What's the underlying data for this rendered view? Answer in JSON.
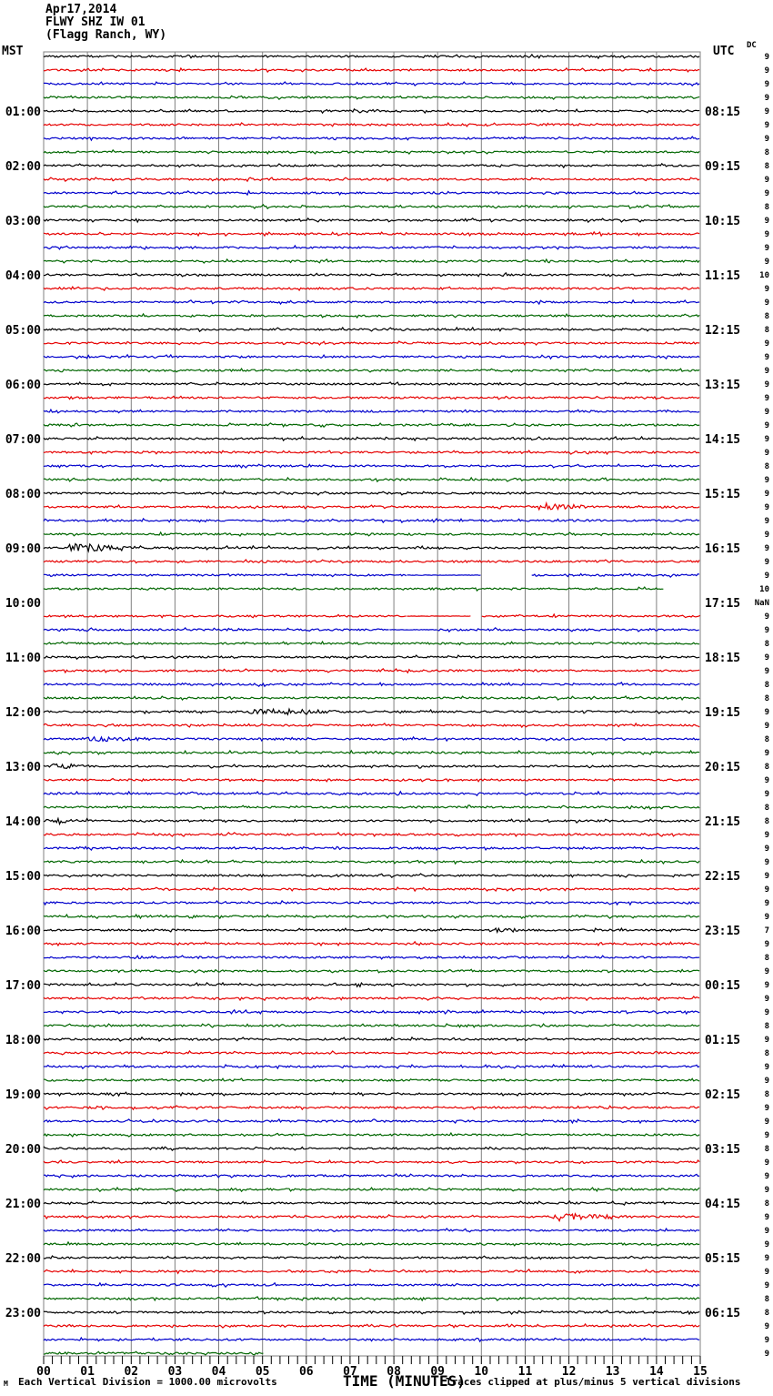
{
  "header": {
    "date": "Apr17,2014",
    "station_line": "FLWY SHZ IW 01",
    "location_line": "(Flagg Ranch, WY)",
    "left_tz": "MST",
    "right_tz": "UTC",
    "dc_label": "DC"
  },
  "x_axis": {
    "title": "TIME (MINUTES)",
    "tick_labels": [
      "00",
      "01",
      "02",
      "03",
      "04",
      "05",
      "06",
      "07",
      "08",
      "09",
      "10",
      "11",
      "12",
      "13",
      "14",
      "15"
    ]
  },
  "footer": {
    "scale_note": "Each Vertical Division = 1000.00 microvolts",
    "clip_note": "Traces clipped at plus/minus 5 vertical divisions",
    "corner_glyph": "M"
  },
  "colors": {
    "grid": "#808080",
    "border": "#808080",
    "trace_cycle": [
      "#000000",
      "#e60000",
      "#0000cc",
      "#006600"
    ]
  },
  "chart_data": {
    "type": "line",
    "subtype": "helicorder-seismogram",
    "title": "FLWY SHZ IW 01 (Flagg Ranch, WY) Apr17,2014",
    "xlabel": "TIME (MINUTES)",
    "x_range": [
      0,
      15
    ],
    "minutes_per_row": 15,
    "rows_per_hour": 4,
    "grid": true,
    "trace_color_cycle": [
      "#000000",
      "#e60000",
      "#0000cc",
      "#006600"
    ],
    "rows": [
      {
        "v": "9"
      },
      {
        "v": "9"
      },
      {
        "v": "9"
      },
      {
        "v": "9"
      },
      {
        "m": "01:00",
        "u": "08:15",
        "v": "9"
      },
      {
        "v": "9"
      },
      {
        "v": "9"
      },
      {
        "v": "8"
      },
      {
        "m": "02:00",
        "u": "09:15",
        "v": "8"
      },
      {
        "v": "9"
      },
      {
        "v": "9"
      },
      {
        "v": "8"
      },
      {
        "m": "03:00",
        "u": "10:15",
        "v": "9"
      },
      {
        "v": "9"
      },
      {
        "v": "9"
      },
      {
        "v": "9"
      },
      {
        "m": "04:00",
        "u": "11:15",
        "v": "10"
      },
      {
        "v": "9"
      },
      {
        "v": "9"
      },
      {
        "v": "8"
      },
      {
        "m": "05:00",
        "u": "12:15",
        "v": "8"
      },
      {
        "v": "9"
      },
      {
        "v": "9"
      },
      {
        "v": "9"
      },
      {
        "m": "06:00",
        "u": "13:15",
        "v": "9"
      },
      {
        "v": "9"
      },
      {
        "v": "9"
      },
      {
        "v": "9"
      },
      {
        "m": "07:00",
        "u": "14:15",
        "v": "9"
      },
      {
        "v": "9"
      },
      {
        "v": "8"
      },
      {
        "v": "9",
        "ev": [
          [
            10.6,
            11.05,
            3
          ]
        ]
      },
      {
        "m": "08:00",
        "u": "15:15",
        "v": "9",
        "ev": [
          [
            5.25,
            5.65,
            2
          ]
        ]
      },
      {
        "v": "9",
        "ev": [
          [
            11.05,
            12.9,
            5
          ]
        ]
      },
      {
        "v": "9"
      },
      {
        "v": "9"
      },
      {
        "m": "09:00",
        "u": "16:15",
        "v": "9",
        "ev": [
          [
            0.4,
            2.4,
            6
          ]
        ]
      },
      {
        "v": "9"
      },
      {
        "v": "9",
        "segs": [
          [
            0,
            8.3,
            "n"
          ],
          [
            8.3,
            10.0,
            "f"
          ],
          [
            11.15,
            15,
            "n"
          ]
        ]
      },
      {
        "v": "10",
        "segs": [
          [
            0,
            14.17,
            "n"
          ]
        ]
      },
      {
        "m": "10:00",
        "u": "17:15",
        "v": "NaN",
        "segs": []
      },
      {
        "v": "9",
        "segs": [
          [
            0,
            8.3,
            "n"
          ],
          [
            8.3,
            9.77,
            "f"
          ],
          [
            10.01,
            15,
            "n"
          ]
        ]
      },
      {
        "v": "9",
        "segs": [
          [
            0,
            7.9,
            "n"
          ],
          [
            7.9,
            9.0,
            "f"
          ],
          [
            9.0,
            15,
            "n"
          ]
        ]
      },
      {
        "v": "8"
      },
      {
        "m": "11:00",
        "u": "18:15",
        "v": "9"
      },
      {
        "v": "9"
      },
      {
        "v": "8"
      },
      {
        "v": "8"
      },
      {
        "m": "12:00",
        "u": "19:15",
        "v": "9",
        "ev": [
          [
            4.6,
            7.2,
            5
          ]
        ]
      },
      {
        "v": "9"
      },
      {
        "v": "8",
        "ev": [
          [
            0.95,
            2.75,
            4
          ]
        ]
      },
      {
        "v": "9",
        "ev": [
          [
            9.45,
            9.85,
            2
          ]
        ]
      },
      {
        "m": "13:00",
        "u": "20:15",
        "v": "8",
        "ev": [
          [
            0.1,
            1.35,
            4
          ]
        ]
      },
      {
        "v": "9"
      },
      {
        "v": "9"
      },
      {
        "v": "8"
      },
      {
        "m": "14:00",
        "u": "21:15",
        "v": "8",
        "ev": [
          [
            0.0,
            1.35,
            4
          ]
        ]
      },
      {
        "v": "9",
        "ev": [
          [
            13.7,
            14.2,
            3
          ]
        ]
      },
      {
        "v": "9"
      },
      {
        "v": "9"
      },
      {
        "m": "15:00",
        "u": "22:15",
        "v": "9"
      },
      {
        "v": "9"
      },
      {
        "v": "9"
      },
      {
        "v": "9"
      },
      {
        "m": "16:00",
        "u": "23:15",
        "v": "7",
        "ev": [
          [
            10.15,
            11.2,
            2.5
          ]
        ]
      },
      {
        "v": "9"
      },
      {
        "v": "8",
        "ev": [
          [
            1.95,
            2.45,
            3
          ]
        ]
      },
      {
        "v": "9"
      },
      {
        "m": "17:00",
        "u": "00:15",
        "v": "9"
      },
      {
        "v": "9"
      },
      {
        "v": "9"
      },
      {
        "v": "8"
      },
      {
        "m": "18:00",
        "u": "01:15",
        "v": "9"
      },
      {
        "v": "8"
      },
      {
        "v": "9"
      },
      {
        "v": "9"
      },
      {
        "m": "19:00",
        "u": "02:15",
        "v": "8"
      },
      {
        "v": "9"
      },
      {
        "v": "9"
      },
      {
        "v": "9"
      },
      {
        "m": "20:00",
        "u": "03:15",
        "v": "8"
      },
      {
        "v": "9"
      },
      {
        "v": "9"
      },
      {
        "v": "9"
      },
      {
        "m": "21:00",
        "u": "04:15",
        "v": "8"
      },
      {
        "v": "9",
        "ev": [
          [
            11.45,
            13.8,
            6
          ]
        ]
      },
      {
        "v": "9"
      },
      {
        "v": "9"
      },
      {
        "m": "22:00",
        "u": "05:15",
        "v": "9"
      },
      {
        "v": "9"
      },
      {
        "v": "9"
      },
      {
        "v": "8"
      },
      {
        "m": "23:00",
        "u": "06:15",
        "v": "8"
      },
      {
        "v": "9"
      },
      {
        "v": "9"
      },
      {
        "v": "9",
        "segs": [
          [
            0,
            5.03,
            "n"
          ]
        ]
      }
    ]
  }
}
